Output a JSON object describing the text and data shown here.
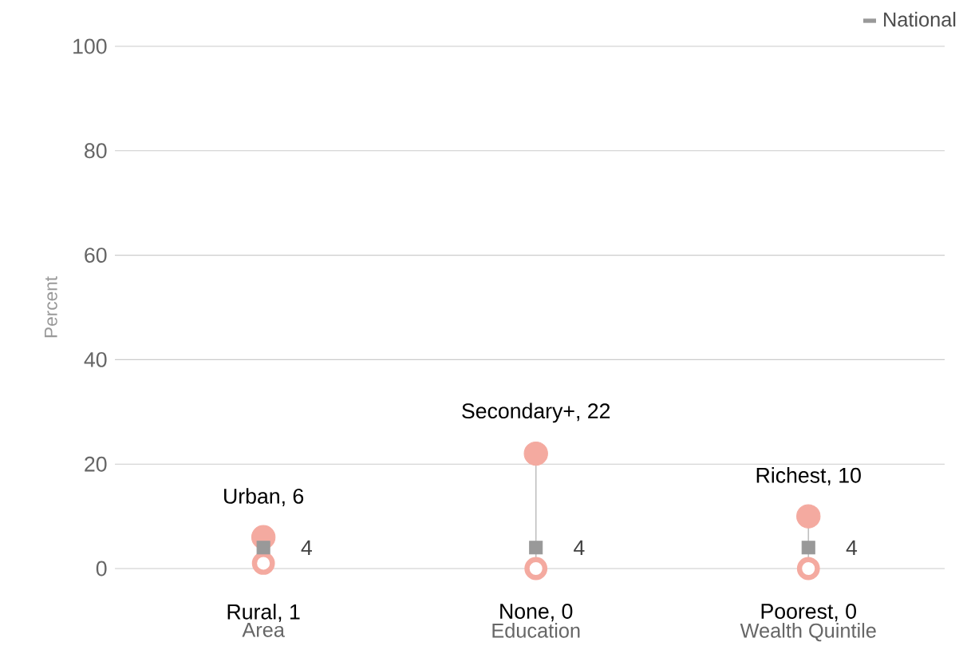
{
  "chart_data": {
    "type": "scatter",
    "ylabel": "Percent",
    "categories": [
      "Area",
      "Education",
      "Wealth Quintile"
    ],
    "series": [
      {
        "color": "#f4aaa0",
        "marker": "circle",
        "values": [
          6,
          22,
          10
        ],
        "value_labels": [
          "Urban, 6",
          "Secondary+, 22",
          "Richest, 10"
        ]
      },
      {
        "color": "#f4aaa0",
        "marker": "circle",
        "values": [
          1,
          0,
          0
        ],
        "value_labels": [
          "Rural, 1",
          "None, 0",
          "Poorest, 0"
        ]
      },
      {
        "name": "National",
        "color": "#999999",
        "marker": "square",
        "values": [
          4,
          4,
          4
        ],
        "value_labels": [
          "4",
          "4",
          "4"
        ]
      }
    ],
    "ylim": [
      0,
      100
    ],
    "yticks": [
      0,
      20,
      40,
      60,
      80,
      100
    ],
    "grid": "y",
    "legend": "top right"
  }
}
